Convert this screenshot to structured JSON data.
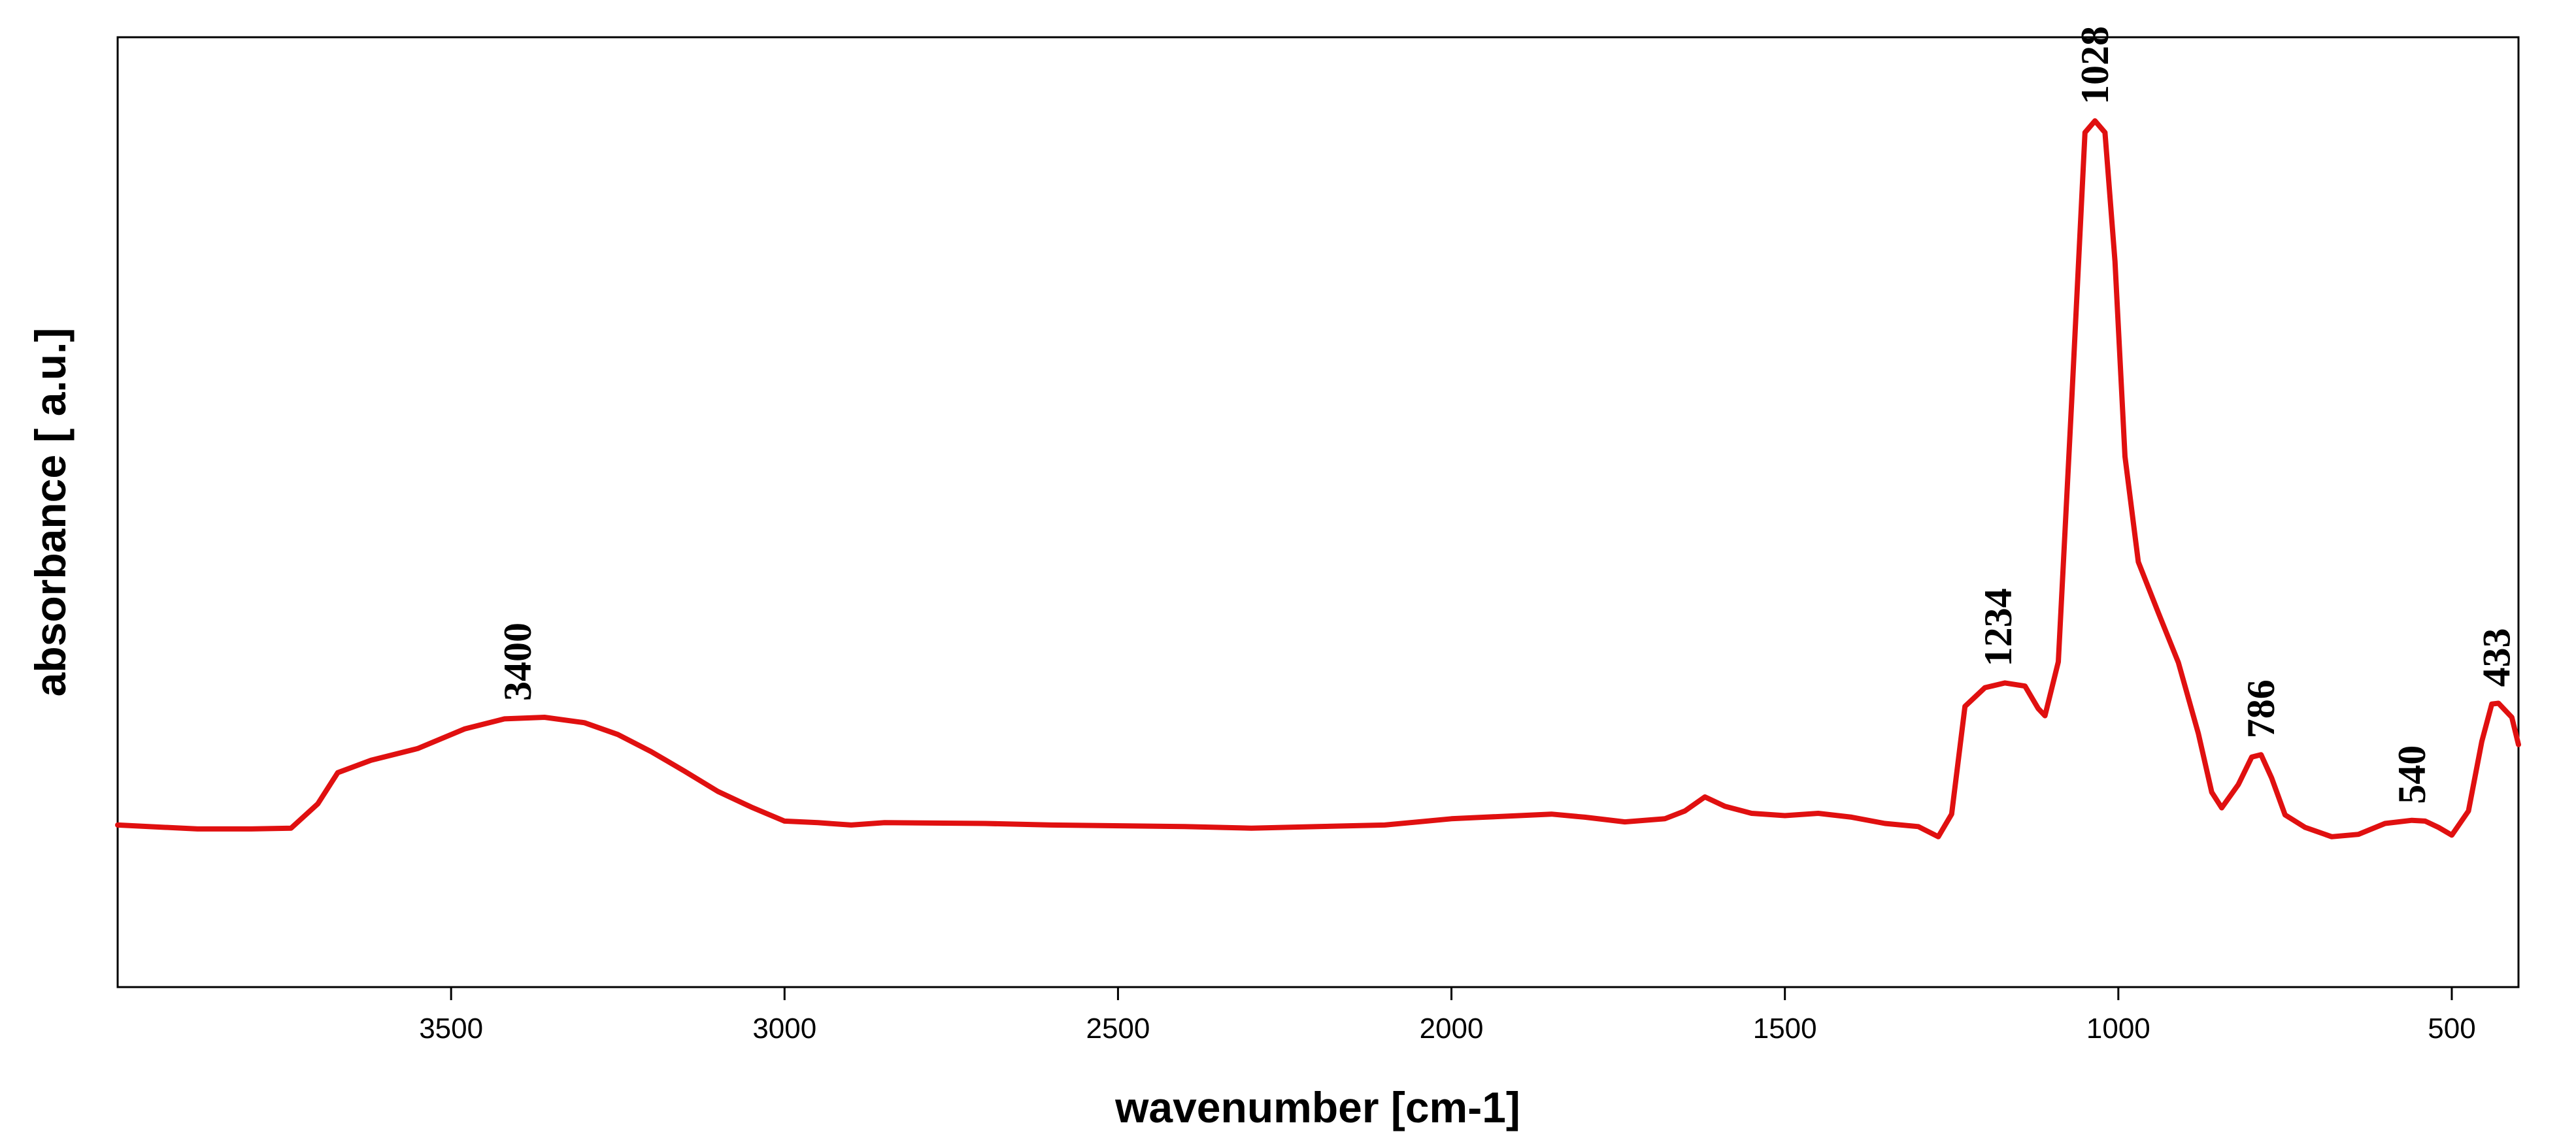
{
  "chart_data": {
    "type": "line",
    "title": "",
    "xlabel": "wavenumber [cm-1]",
    "ylabel": "absorbance [ a.u.]",
    "xlim": [
      4000,
      400
    ],
    "x_reversed": true,
    "ylim": [
      0,
      1
    ],
    "y_ticks_shown": false,
    "grid": false,
    "legend": "none",
    "x_ticks": [
      3500,
      3000,
      2500,
      2000,
      1500,
      1000,
      500
    ],
    "series": [
      {
        "color": "#e01010",
        "points": [
          [
            4000,
            0.098
          ],
          [
            3880,
            0.093
          ],
          [
            3800,
            0.093
          ],
          [
            3740,
            0.094
          ],
          [
            3700,
            0.125
          ],
          [
            3670,
            0.165
          ],
          [
            3620,
            0.181
          ],
          [
            3550,
            0.196
          ],
          [
            3480,
            0.221
          ],
          [
            3420,
            0.234
          ],
          [
            3360,
            0.236
          ],
          [
            3300,
            0.229
          ],
          [
            3250,
            0.214
          ],
          [
            3200,
            0.192
          ],
          [
            3150,
            0.167
          ],
          [
            3100,
            0.141
          ],
          [
            3050,
            0.121
          ],
          [
            3000,
            0.103
          ],
          [
            2950,
            0.101
          ],
          [
            2900,
            0.098
          ],
          [
            2850,
            0.101
          ],
          [
            2700,
            0.1
          ],
          [
            2600,
            0.098
          ],
          [
            2400,
            0.096
          ],
          [
            2300,
            0.094
          ],
          [
            2200,
            0.096
          ],
          [
            2100,
            0.098
          ],
          [
            2000,
            0.106
          ],
          [
            1950,
            0.108
          ],
          [
            1850,
            0.112
          ],
          [
            1800,
            0.108
          ],
          [
            1740,
            0.102
          ],
          [
            1680,
            0.106
          ],
          [
            1650,
            0.116
          ],
          [
            1620,
            0.134
          ],
          [
            1590,
            0.122
          ],
          [
            1550,
            0.113
          ],
          [
            1500,
            0.11
          ],
          [
            1450,
            0.113
          ],
          [
            1400,
            0.108
          ],
          [
            1350,
            0.1
          ],
          [
            1300,
            0.096
          ],
          [
            1270,
            0.083
          ],
          [
            1250,
            0.112
          ],
          [
            1230,
            0.25
          ],
          [
            1200,
            0.274
          ],
          [
            1170,
            0.28
          ],
          [
            1140,
            0.276
          ],
          [
            1120,
            0.247
          ],
          [
            1110,
            0.238
          ],
          [
            1090,
            0.307
          ],
          [
            1070,
            0.64
          ],
          [
            1050,
            0.985
          ],
          [
            1035,
            1.0
          ],
          [
            1020,
            0.985
          ],
          [
            1005,
            0.82
          ],
          [
            990,
            0.57
          ],
          [
            970,
            0.435
          ],
          [
            940,
            0.37
          ],
          [
            910,
            0.306
          ],
          [
            880,
            0.215
          ],
          [
            860,
            0.14
          ],
          [
            845,
            0.12
          ],
          [
            820,
            0.15
          ],
          [
            800,
            0.185
          ],
          [
            786,
            0.188
          ],
          [
            770,
            0.158
          ],
          [
            750,
            0.111
          ],
          [
            720,
            0.095
          ],
          [
            680,
            0.083
          ],
          [
            640,
            0.086
          ],
          [
            600,
            0.1
          ],
          [
            560,
            0.104
          ],
          [
            540,
            0.103
          ],
          [
            520,
            0.095
          ],
          [
            500,
            0.085
          ],
          [
            475,
            0.116
          ],
          [
            455,
            0.205
          ],
          [
            440,
            0.253
          ],
          [
            430,
            0.254
          ],
          [
            410,
            0.236
          ],
          [
            400,
            0.201
          ]
        ]
      }
    ],
    "annotations": [
      {
        "text": "3400",
        "x": 3400,
        "y": 0.236
      },
      {
        "text": "1234",
        "x": 1180,
        "y": 0.28
      },
      {
        "text": "1028",
        "x": 1035,
        "y": 1.0
      },
      {
        "text": "786",
        "x": 786,
        "y": 0.188
      },
      {
        "text": "540",
        "x": 560,
        "y": 0.104
      },
      {
        "text": "433",
        "x": 433,
        "y": 0.254
      }
    ]
  }
}
